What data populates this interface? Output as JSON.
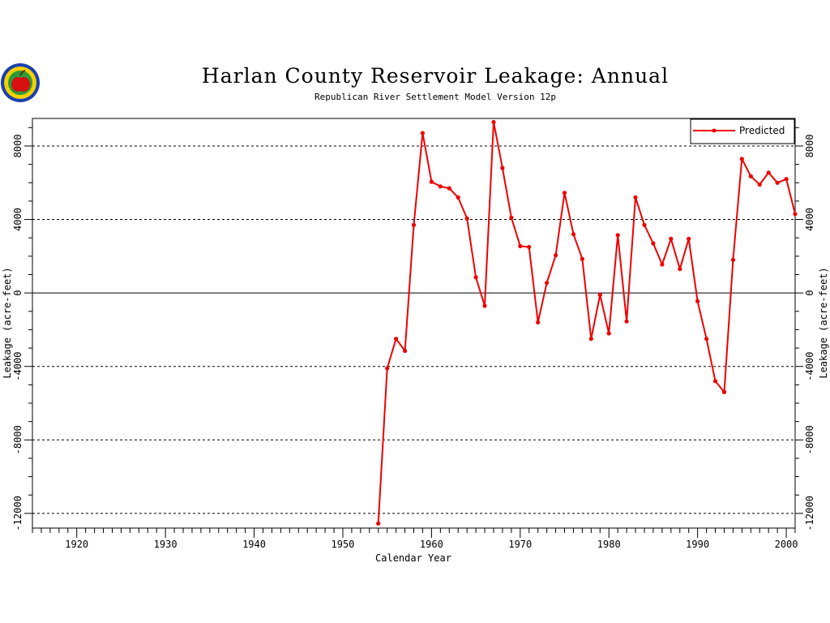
{
  "colors": {
    "series": "#ee0000",
    "axis": "#000000",
    "background": "#ffffff"
  },
  "logo": {
    "icon": "apple-seal-logo"
  },
  "chart_data": {
    "type": "line",
    "title": "Harlan County Reservoir Leakage: Annual",
    "subtitle": "Republican River Settlement Model Version 12p",
    "xlabel": "Calendar Year",
    "ylabel": "Leakage (acre-feet)",
    "xlim": [
      1915,
      2001
    ],
    "ylim": [
      -12800,
      9500
    ],
    "x_ticks": [
      1920,
      1930,
      1940,
      1950,
      1960,
      1970,
      1980,
      1990,
      2000
    ],
    "x_tick_labels": [
      "1920",
      "1930",
      "1940",
      "1950",
      "1960",
      "1970",
      "1980",
      "1990",
      "2000"
    ],
    "y_ticks": [
      -12000,
      -8000,
      -4000,
      0,
      4000,
      8000
    ],
    "y_tick_labels": [
      "-12000",
      "-8000",
      "-4000",
      "0",
      "4000",
      "8000"
    ],
    "grid": "dashed horizontal lines at y ticks, solid at zero",
    "legend_position": "top-right",
    "series": [
      {
        "name": "Predicted",
        "x": [
          1954,
          1955,
          1956,
          1957,
          1958,
          1959,
          1960,
          1961,
          1962,
          1963,
          1964,
          1965,
          1966,
          1967,
          1968,
          1969,
          1970,
          1971,
          1972,
          1973,
          1974,
          1975,
          1976,
          1977,
          1978,
          1979,
          1980,
          1981,
          1982,
          1983,
          1984,
          1985,
          1986,
          1987,
          1988,
          1989,
          1990,
          1991,
          1992,
          1993,
          1994,
          1995,
          1996,
          1997,
          1998,
          1999,
          2000,
          2001
        ],
        "values": [
          -12550,
          -4100,
          -2500,
          -3150,
          3700,
          8700,
          6050,
          5800,
          5700,
          5200,
          4050,
          850,
          -700,
          9300,
          6800,
          4100,
          2550,
          2500,
          -1600,
          550,
          2050,
          5450,
          3200,
          1850,
          -2500,
          -100,
          -2200,
          3150,
          -1550,
          5200,
          3700,
          2700,
          1550,
          2950,
          1300,
          2950,
          -450,
          -2500,
          -4800,
          -5400,
          1800,
          7300,
          6350,
          5900,
          6550,
          6000,
          6200,
          4300
        ]
      }
    ]
  }
}
